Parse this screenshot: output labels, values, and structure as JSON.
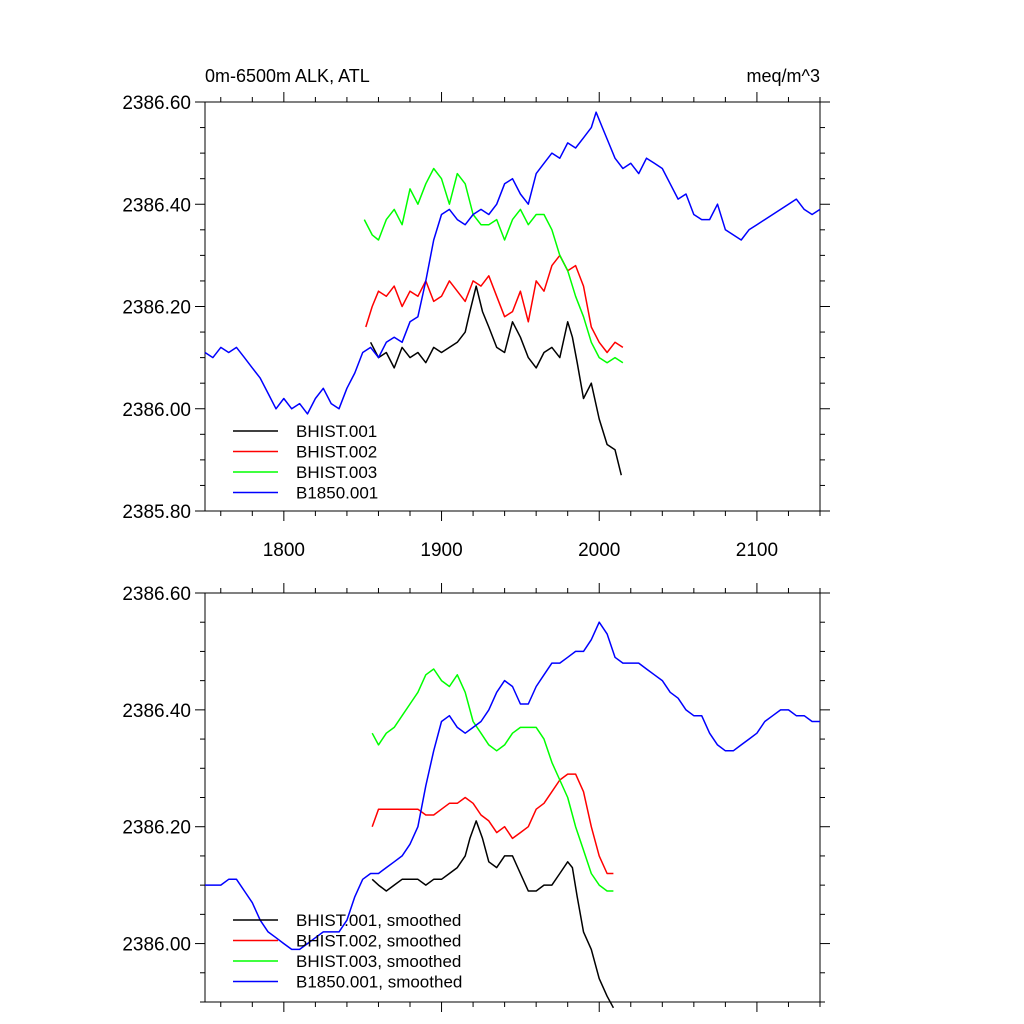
{
  "chart_data": [
    {
      "type": "line",
      "title": "0m-6500m ALK, ATL",
      "units": "meq/m^3",
      "xlim": [
        1750,
        2140
      ],
      "ylim": [
        2385.8,
        2386.6
      ],
      "xticks": [
        1800,
        1900,
        2000,
        2100
      ],
      "yticks": [
        2385.8,
        2386.0,
        2386.2,
        2386.4,
        2386.6
      ],
      "ytick_labels": [
        "2385.80",
        "2386.00",
        "2386.20",
        "2386.40",
        "2386.60"
      ],
      "xtick_labels": [
        "1800",
        "1900",
        "2000",
        "2100"
      ],
      "legend_position": "bottom-left",
      "series": [
        {
          "name": "BHIST.001",
          "color": "#000000",
          "x": [
            1855,
            1860,
            1865,
            1870,
            1875,
            1880,
            1885,
            1890,
            1895,
            1900,
            1905,
            1910,
            1915,
            1918,
            1922,
            1926,
            1930,
            1935,
            1940,
            1945,
            1950,
            1955,
            1960,
            1965,
            1970,
            1975,
            1980,
            1983,
            1986,
            1990,
            1995,
            2000,
            2005,
            2010,
            2014
          ],
          "y": [
            2386.13,
            2386.1,
            2386.11,
            2386.08,
            2386.12,
            2386.1,
            2386.11,
            2386.09,
            2386.12,
            2386.11,
            2386.12,
            2386.13,
            2386.15,
            2386.19,
            2386.24,
            2386.19,
            2386.16,
            2386.12,
            2386.11,
            2386.17,
            2386.14,
            2386.1,
            2386.08,
            2386.11,
            2386.12,
            2386.1,
            2386.17,
            2386.14,
            2386.09,
            2386.02,
            2386.05,
            2385.98,
            2385.93,
            2385.92,
            2385.87
          ]
        },
        {
          "name": "BHIST.002",
          "color": "#ff0000",
          "x": [
            1852,
            1856,
            1860,
            1865,
            1870,
            1875,
            1880,
            1885,
            1890,
            1895,
            1900,
            1905,
            1910,
            1915,
            1920,
            1925,
            1930,
            1935,
            1940,
            1945,
            1950,
            1955,
            1960,
            1965,
            1970,
            1975,
            1980,
            1985,
            1990,
            1995,
            2000,
            2005,
            2010,
            2015
          ],
          "y": [
            2386.16,
            2386.2,
            2386.23,
            2386.22,
            2386.24,
            2386.2,
            2386.23,
            2386.22,
            2386.25,
            2386.21,
            2386.22,
            2386.25,
            2386.23,
            2386.21,
            2386.25,
            2386.24,
            2386.26,
            2386.22,
            2386.18,
            2386.19,
            2386.23,
            2386.17,
            2386.25,
            2386.23,
            2386.28,
            2386.3,
            2386.27,
            2386.28,
            2386.24,
            2386.16,
            2386.13,
            2386.11,
            2386.13,
            2386.12
          ]
        },
        {
          "name": "BHIST.003",
          "color": "#00ff00",
          "x": [
            1851,
            1856,
            1860,
            1865,
            1870,
            1875,
            1880,
            1885,
            1890,
            1895,
            1900,
            1905,
            1910,
            1915,
            1920,
            1925,
            1930,
            1935,
            1940,
            1945,
            1950,
            1955,
            1960,
            1965,
            1970,
            1975,
            1980,
            1985,
            1990,
            1995,
            2000,
            2005,
            2010,
            2015
          ],
          "y": [
            2386.37,
            2386.34,
            2386.33,
            2386.37,
            2386.39,
            2386.36,
            2386.43,
            2386.4,
            2386.44,
            2386.47,
            2386.45,
            2386.4,
            2386.46,
            2386.44,
            2386.38,
            2386.36,
            2386.36,
            2386.37,
            2386.33,
            2386.37,
            2386.39,
            2386.36,
            2386.38,
            2386.38,
            2386.35,
            2386.3,
            2386.27,
            2386.22,
            2386.18,
            2386.13,
            2386.1,
            2386.09,
            2386.1,
            2386.09
          ]
        },
        {
          "name": "B1850.001",
          "color": "#0000ff",
          "x": [
            1750,
            1755,
            1760,
            1765,
            1770,
            1775,
            1780,
            1785,
            1790,
            1795,
            1800,
            1805,
            1810,
            1815,
            1820,
            1825,
            1830,
            1835,
            1840,
            1845,
            1850,
            1855,
            1860,
            1865,
            1870,
            1875,
            1880,
            1885,
            1890,
            1895,
            1900,
            1905,
            1910,
            1915,
            1920,
            1925,
            1930,
            1935,
            1940,
            1945,
            1950,
            1955,
            1960,
            1965,
            1970,
            1975,
            1980,
            1985,
            1990,
            1995,
            1998,
            2002,
            2006,
            2010,
            2015,
            2020,
            2025,
            2030,
            2035,
            2040,
            2045,
            2050,
            2055,
            2060,
            2065,
            2070,
            2075,
            2080,
            2085,
            2090,
            2095,
            2100,
            2105,
            2110,
            2115,
            2120,
            2125,
            2130,
            2135,
            2140
          ],
          "y": [
            2386.11,
            2386.1,
            2386.12,
            2386.11,
            2386.12,
            2386.1,
            2386.08,
            2386.06,
            2386.03,
            2386.0,
            2386.02,
            2386.0,
            2386.01,
            2385.99,
            2386.02,
            2386.04,
            2386.01,
            2386.0,
            2386.04,
            2386.07,
            2386.11,
            2386.12,
            2386.1,
            2386.13,
            2386.14,
            2386.13,
            2386.17,
            2386.18,
            2386.25,
            2386.33,
            2386.38,
            2386.39,
            2386.37,
            2386.36,
            2386.38,
            2386.39,
            2386.38,
            2386.4,
            2386.44,
            2386.45,
            2386.42,
            2386.4,
            2386.46,
            2386.48,
            2386.5,
            2386.49,
            2386.52,
            2386.51,
            2386.53,
            2386.55,
            2386.58,
            2386.55,
            2386.52,
            2386.49,
            2386.47,
            2386.48,
            2386.46,
            2386.49,
            2386.48,
            2386.47,
            2386.44,
            2386.41,
            2386.42,
            2386.38,
            2386.37,
            2386.37,
            2386.4,
            2386.35,
            2386.34,
            2386.33,
            2386.35,
            2386.36,
            2386.37,
            2386.38,
            2386.39,
            2386.4,
            2386.41,
            2386.39,
            2386.38,
            2386.39
          ]
        }
      ]
    },
    {
      "type": "line",
      "xlim": [
        1750,
        2140
      ],
      "ylim": [
        2385.9,
        2386.6
      ],
      "xticks": [
        1800,
        1900,
        2000,
        2100
      ],
      "yticks": [
        2386.0,
        2386.2,
        2386.4,
        2386.6
      ],
      "ytick_labels": [
        "2386.00",
        "2386.20",
        "2386.40",
        "2386.60"
      ],
      "legend_position": "bottom-left",
      "series": [
        {
          "name": "BHIST.001, smoothed",
          "color": "#000000",
          "x": [
            1856,
            1860,
            1865,
            1870,
            1875,
            1880,
            1885,
            1890,
            1895,
            1900,
            1905,
            1910,
            1915,
            1918,
            1922,
            1926,
            1930,
            1935,
            1940,
            1945,
            1950,
            1955,
            1960,
            1965,
            1970,
            1975,
            1980,
            1983,
            1986,
            1990,
            1995,
            2000,
            2005,
            2009
          ],
          "y": [
            2386.11,
            2386.1,
            2386.09,
            2386.1,
            2386.11,
            2386.11,
            2386.11,
            2386.1,
            2386.11,
            2386.11,
            2386.12,
            2386.13,
            2386.15,
            2386.18,
            2386.21,
            2386.18,
            2386.14,
            2386.13,
            2386.15,
            2386.15,
            2386.12,
            2386.09,
            2386.09,
            2386.1,
            2386.1,
            2386.12,
            2386.14,
            2386.13,
            2386.08,
            2386.02,
            2385.99,
            2385.94,
            2385.91,
            2385.89
          ]
        },
        {
          "name": "BHIST.002, smoothed",
          "color": "#ff0000",
          "x": [
            1856,
            1860,
            1865,
            1870,
            1875,
            1880,
            1885,
            1890,
            1895,
            1900,
            1905,
            1910,
            1915,
            1920,
            1925,
            1930,
            1935,
            1940,
            1945,
            1950,
            1955,
            1960,
            1965,
            1970,
            1975,
            1980,
            1985,
            1990,
            1995,
            2000,
            2005,
            2009
          ],
          "y": [
            2386.2,
            2386.23,
            2386.23,
            2386.23,
            2386.23,
            2386.23,
            2386.23,
            2386.22,
            2386.22,
            2386.23,
            2386.24,
            2386.24,
            2386.25,
            2386.24,
            2386.22,
            2386.21,
            2386.19,
            2386.2,
            2386.18,
            2386.19,
            2386.2,
            2386.23,
            2386.24,
            2386.26,
            2386.28,
            2386.29,
            2386.29,
            2386.26,
            2386.2,
            2386.15,
            2386.12,
            2386.12
          ]
        },
        {
          "name": "BHIST.003, smoothed",
          "color": "#00ff00",
          "x": [
            1856,
            1860,
            1865,
            1870,
            1875,
            1880,
            1885,
            1890,
            1895,
            1900,
            1905,
            1910,
            1915,
            1920,
            1925,
            1930,
            1935,
            1940,
            1945,
            1950,
            1955,
            1960,
            1965,
            1970,
            1975,
            1980,
            1985,
            1990,
            1995,
            2000,
            2005,
            2009
          ],
          "y": [
            2386.36,
            2386.34,
            2386.36,
            2386.37,
            2386.39,
            2386.41,
            2386.43,
            2386.46,
            2386.47,
            2386.45,
            2386.44,
            2386.46,
            2386.43,
            2386.38,
            2386.36,
            2386.34,
            2386.33,
            2386.34,
            2386.36,
            2386.37,
            2386.37,
            2386.37,
            2386.35,
            2386.31,
            2386.28,
            2386.25,
            2386.2,
            2386.16,
            2386.12,
            2386.1,
            2386.09,
            2386.09
          ]
        },
        {
          "name": "B1850.001, smoothed",
          "color": "#0000ff",
          "x": [
            1750,
            1755,
            1760,
            1765,
            1770,
            1775,
            1780,
            1785,
            1790,
            1795,
            1800,
            1805,
            1810,
            1815,
            1820,
            1825,
            1830,
            1835,
            1840,
            1845,
            1850,
            1855,
            1860,
            1865,
            1870,
            1875,
            1880,
            1885,
            1890,
            1895,
            1900,
            1905,
            1910,
            1915,
            1920,
            1925,
            1930,
            1935,
            1940,
            1945,
            1950,
            1955,
            1960,
            1965,
            1970,
            1975,
            1980,
            1985,
            1990,
            1995,
            2000,
            2005,
            2010,
            2015,
            2020,
            2025,
            2030,
            2035,
            2040,
            2045,
            2050,
            2055,
            2060,
            2065,
            2070,
            2075,
            2080,
            2085,
            2090,
            2095,
            2100,
            2105,
            2110,
            2115,
            2120,
            2125,
            2130,
            2135,
            2140
          ],
          "y": [
            2386.1,
            2386.1,
            2386.1,
            2386.11,
            2386.11,
            2386.09,
            2386.07,
            2386.04,
            2386.02,
            2386.01,
            2386.0,
            2385.99,
            2385.99,
            2386.0,
            2386.01,
            2386.02,
            2386.02,
            2386.02,
            2386.04,
            2386.08,
            2386.11,
            2386.12,
            2386.12,
            2386.13,
            2386.14,
            2386.15,
            2386.17,
            2386.2,
            2386.27,
            2386.33,
            2386.38,
            2386.39,
            2386.37,
            2386.36,
            2386.37,
            2386.38,
            2386.4,
            2386.43,
            2386.45,
            2386.44,
            2386.41,
            2386.41,
            2386.44,
            2386.46,
            2386.48,
            2386.48,
            2386.49,
            2386.5,
            2386.5,
            2386.52,
            2386.55,
            2386.53,
            2386.49,
            2386.48,
            2386.48,
            2386.48,
            2386.47,
            2386.46,
            2386.45,
            2386.43,
            2386.42,
            2386.4,
            2386.39,
            2386.39,
            2386.36,
            2386.34,
            2386.33,
            2386.33,
            2386.34,
            2386.35,
            2386.36,
            2386.38,
            2386.39,
            2386.4,
            2386.4,
            2386.39,
            2386.39,
            2386.38,
            2386.38
          ]
        }
      ]
    }
  ]
}
